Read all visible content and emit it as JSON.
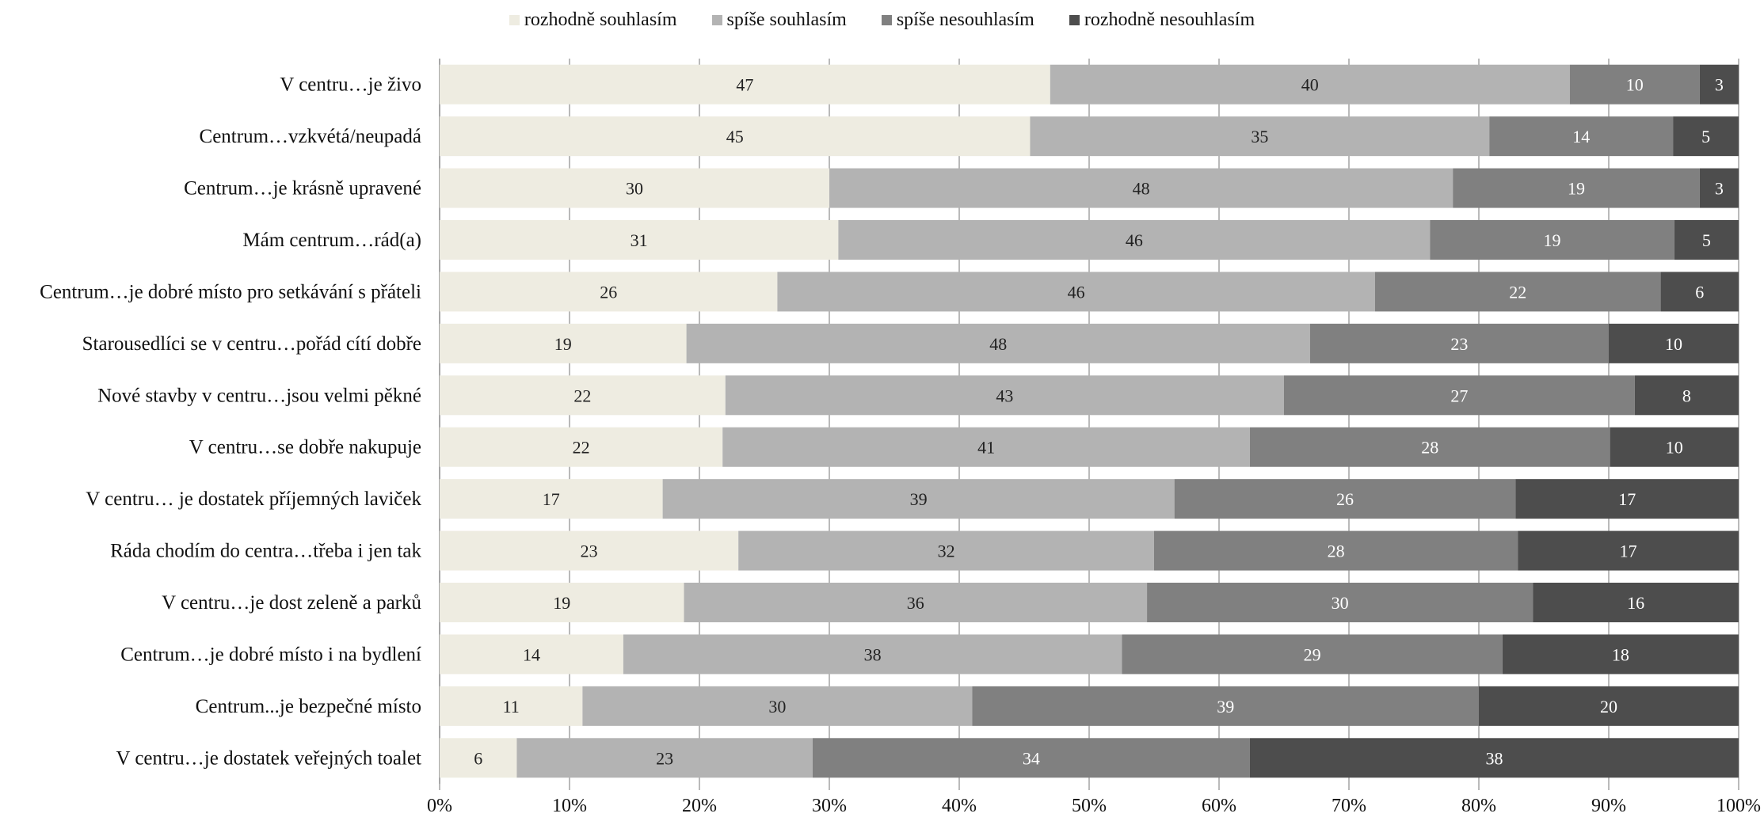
{
  "chart_data": {
    "type": "bar",
    "orientation": "horizontal",
    "stacked": "percent",
    "categories": [
      "V centru…je živo",
      "Centrum…vzkvétá/neupadá",
      "Centrum…je krásně upravené",
      "Mám centrum…rád(a)",
      "Centrum…je dobré místo pro setkávání s přáteli",
      "Starousedlíci se v centru…pořád cítí dobře",
      "Nové stavby v centru…jsou velmi pěkné",
      "V centru…se dobře nakupuje",
      "V centru… je dostatek příjemných laviček",
      "Ráda chodím do centra…třeba i jen tak",
      "V centru…je dost zeleně a parků",
      "Centrum…je dobré místo i na bydlení",
      "Centrum...je bezpečné místo",
      "V centru…je dostatek veřejných toalet"
    ],
    "series": [
      {
        "name": "rozhodně souhlasím",
        "color": "#eeece1",
        "label_color": "#222222",
        "values": [
          47,
          45,
          30,
          31,
          26,
          19,
          22,
          22,
          17,
          23,
          19,
          14,
          11,
          6
        ]
      },
      {
        "name": "spíše souhlasím",
        "color": "#b3b3b3",
        "label_color": "#222222",
        "values": [
          40,
          35,
          48,
          46,
          46,
          48,
          43,
          41,
          39,
          32,
          36,
          38,
          30,
          23
        ]
      },
      {
        "name": "spíše nesouhlasím",
        "color": "#808080",
        "label_color": "#ffffff",
        "values": [
          10,
          14,
          19,
          19,
          22,
          23,
          27,
          28,
          26,
          28,
          30,
          29,
          39,
          34
        ]
      },
      {
        "name": "rozhodně nesouhlasím",
        "color": "#4d4d4d",
        "label_color": "#ffffff",
        "values": [
          3,
          5,
          3,
          5,
          6,
          10,
          8,
          10,
          17,
          17,
          16,
          18,
          20,
          38
        ]
      }
    ],
    "x_ticks": [
      "0%",
      "10%",
      "20%",
      "30%",
      "40%",
      "50%",
      "60%",
      "70%",
      "80%",
      "90%",
      "100%"
    ],
    "xlim": [
      0,
      100
    ],
    "grid": true,
    "legend_position": "top",
    "title": "",
    "xlabel": "",
    "ylabel": ""
  }
}
